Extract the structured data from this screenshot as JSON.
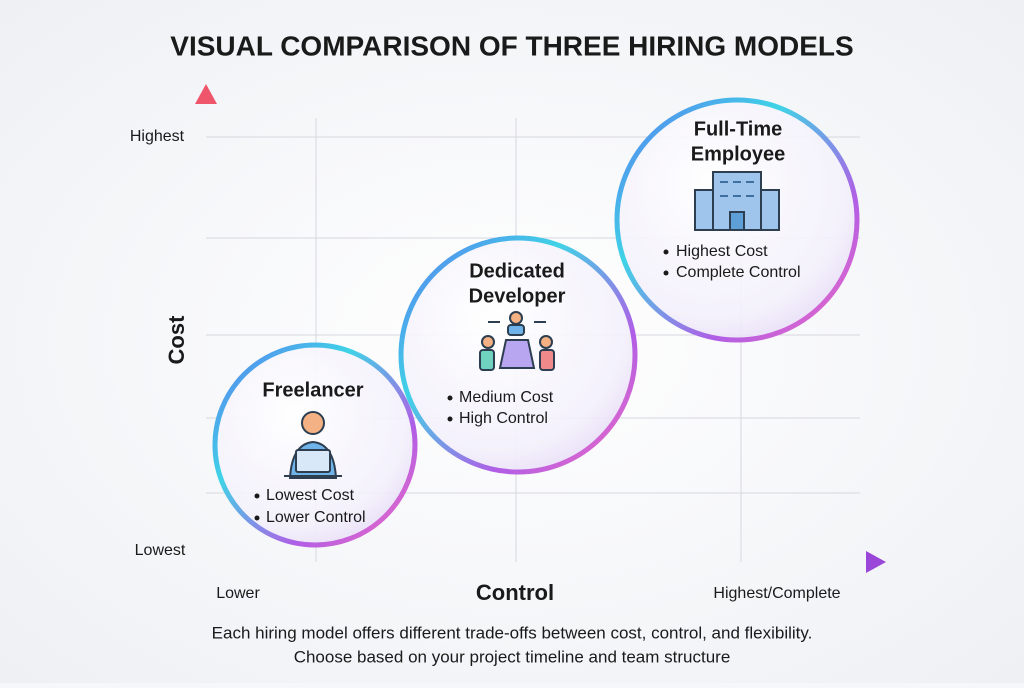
{
  "title": "VISUAL COMPARISON OF THREE HIRING MODELS",
  "y_axis": {
    "label": "Cost",
    "ticks": [
      "Highest",
      "Lowest"
    ]
  },
  "x_axis": {
    "label": "Control",
    "ticks": [
      "Lower",
      "Highest/Complete"
    ]
  },
  "models": [
    {
      "title": [
        "Freelancer"
      ],
      "bullets": [
        "Lowest Cost",
        "Lower Control"
      ]
    },
    {
      "title": [
        "Dedicated",
        "Developer"
      ],
      "bullets": [
        "Medium Cost",
        "High Control"
      ]
    },
    {
      "title": [
        "Full-Time",
        "Employee"
      ],
      "bullets": [
        "Highest Cost",
        "Complete Control"
      ]
    }
  ],
  "footer": [
    "Each hiring model offers different trade-offs between cost, control, and flexibility.",
    "Choose based on your project timeline and team structure"
  ]
}
